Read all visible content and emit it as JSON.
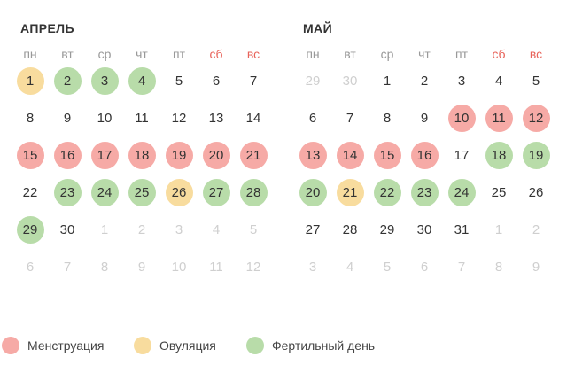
{
  "months": [
    {
      "title": "АПРЕЛЬ",
      "weekdays": [
        "пн",
        "вт",
        "ср",
        "чт",
        "пт",
        "сб",
        "вс"
      ],
      "weeks": [
        [
          {
            "n": "1",
            "type": "ovulation"
          },
          {
            "n": "2",
            "type": "fertile"
          },
          {
            "n": "3",
            "type": "fertile"
          },
          {
            "n": "4",
            "type": "fertile"
          },
          {
            "n": "5",
            "type": ""
          },
          {
            "n": "6",
            "type": ""
          },
          {
            "n": "7",
            "type": ""
          }
        ],
        [
          {
            "n": "8",
            "type": ""
          },
          {
            "n": "9",
            "type": ""
          },
          {
            "n": "10",
            "type": ""
          },
          {
            "n": "11",
            "type": ""
          },
          {
            "n": "12",
            "type": ""
          },
          {
            "n": "13",
            "type": ""
          },
          {
            "n": "14",
            "type": ""
          }
        ],
        [
          {
            "n": "15",
            "type": "menstruation"
          },
          {
            "n": "16",
            "type": "menstruation"
          },
          {
            "n": "17",
            "type": "menstruation"
          },
          {
            "n": "18",
            "type": "menstruation"
          },
          {
            "n": "19",
            "type": "menstruation"
          },
          {
            "n": "20",
            "type": "menstruation"
          },
          {
            "n": "21",
            "type": "menstruation"
          }
        ],
        [
          {
            "n": "22",
            "type": ""
          },
          {
            "n": "23",
            "type": "fertile"
          },
          {
            "n": "24",
            "type": "fertile"
          },
          {
            "n": "25",
            "type": "fertile"
          },
          {
            "n": "26",
            "type": "ovulation"
          },
          {
            "n": "27",
            "type": "fertile"
          },
          {
            "n": "28",
            "type": "fertile"
          }
        ],
        [
          {
            "n": "29",
            "type": "fertile"
          },
          {
            "n": "30",
            "type": ""
          },
          {
            "n": "1",
            "type": "other"
          },
          {
            "n": "2",
            "type": "other"
          },
          {
            "n": "3",
            "type": "other"
          },
          {
            "n": "4",
            "type": "other"
          },
          {
            "n": "5",
            "type": "other"
          }
        ],
        [
          {
            "n": "6",
            "type": "other"
          },
          {
            "n": "7",
            "type": "other"
          },
          {
            "n": "8",
            "type": "other"
          },
          {
            "n": "9",
            "type": "other"
          },
          {
            "n": "10",
            "type": "other"
          },
          {
            "n": "11",
            "type": "other"
          },
          {
            "n": "12",
            "type": "other"
          }
        ]
      ]
    },
    {
      "title": "МАЙ",
      "weekdays": [
        "пн",
        "вт",
        "ср",
        "чт",
        "пт",
        "сб",
        "вс"
      ],
      "weeks": [
        [
          {
            "n": "29",
            "type": "other"
          },
          {
            "n": "30",
            "type": "other"
          },
          {
            "n": "1",
            "type": ""
          },
          {
            "n": "2",
            "type": ""
          },
          {
            "n": "3",
            "type": ""
          },
          {
            "n": "4",
            "type": ""
          },
          {
            "n": "5",
            "type": ""
          }
        ],
        [
          {
            "n": "6",
            "type": ""
          },
          {
            "n": "7",
            "type": ""
          },
          {
            "n": "8",
            "type": ""
          },
          {
            "n": "9",
            "type": ""
          },
          {
            "n": "10",
            "type": "menstruation"
          },
          {
            "n": "11",
            "type": "menstruation"
          },
          {
            "n": "12",
            "type": "menstruation"
          }
        ],
        [
          {
            "n": "13",
            "type": "menstruation"
          },
          {
            "n": "14",
            "type": "menstruation"
          },
          {
            "n": "15",
            "type": "menstruation"
          },
          {
            "n": "16",
            "type": "menstruation"
          },
          {
            "n": "17",
            "type": ""
          },
          {
            "n": "18",
            "type": "fertile"
          },
          {
            "n": "19",
            "type": "fertile"
          }
        ],
        [
          {
            "n": "20",
            "type": "fertile"
          },
          {
            "n": "21",
            "type": "ovulation"
          },
          {
            "n": "22",
            "type": "fertile"
          },
          {
            "n": "23",
            "type": "fertile"
          },
          {
            "n": "24",
            "type": "fertile"
          },
          {
            "n": "25",
            "type": ""
          },
          {
            "n": "26",
            "type": ""
          }
        ],
        [
          {
            "n": "27",
            "type": ""
          },
          {
            "n": "28",
            "type": ""
          },
          {
            "n": "29",
            "type": ""
          },
          {
            "n": "30",
            "type": ""
          },
          {
            "n": "31",
            "type": ""
          },
          {
            "n": "1",
            "type": "other"
          },
          {
            "n": "2",
            "type": "other"
          }
        ],
        [
          {
            "n": "3",
            "type": "other"
          },
          {
            "n": "4",
            "type": "other"
          },
          {
            "n": "5",
            "type": "other"
          },
          {
            "n": "6",
            "type": "other"
          },
          {
            "n": "7",
            "type": "other"
          },
          {
            "n": "8",
            "type": "other"
          },
          {
            "n": "9",
            "type": "other"
          }
        ]
      ]
    }
  ],
  "legend": [
    {
      "label": "Менструация",
      "color": "#f6aaa6"
    },
    {
      "label": "Овуляция",
      "color": "#f8dc9e"
    },
    {
      "label": "Фертильный день",
      "color": "#b8dca9"
    }
  ],
  "colors": {
    "menstruation": "#f6aaa6",
    "ovulation": "#f8dc9e",
    "fertile": "#b8dca9",
    "weekend_text": "#e8635a",
    "other_month_text": "#cfcfcf"
  }
}
